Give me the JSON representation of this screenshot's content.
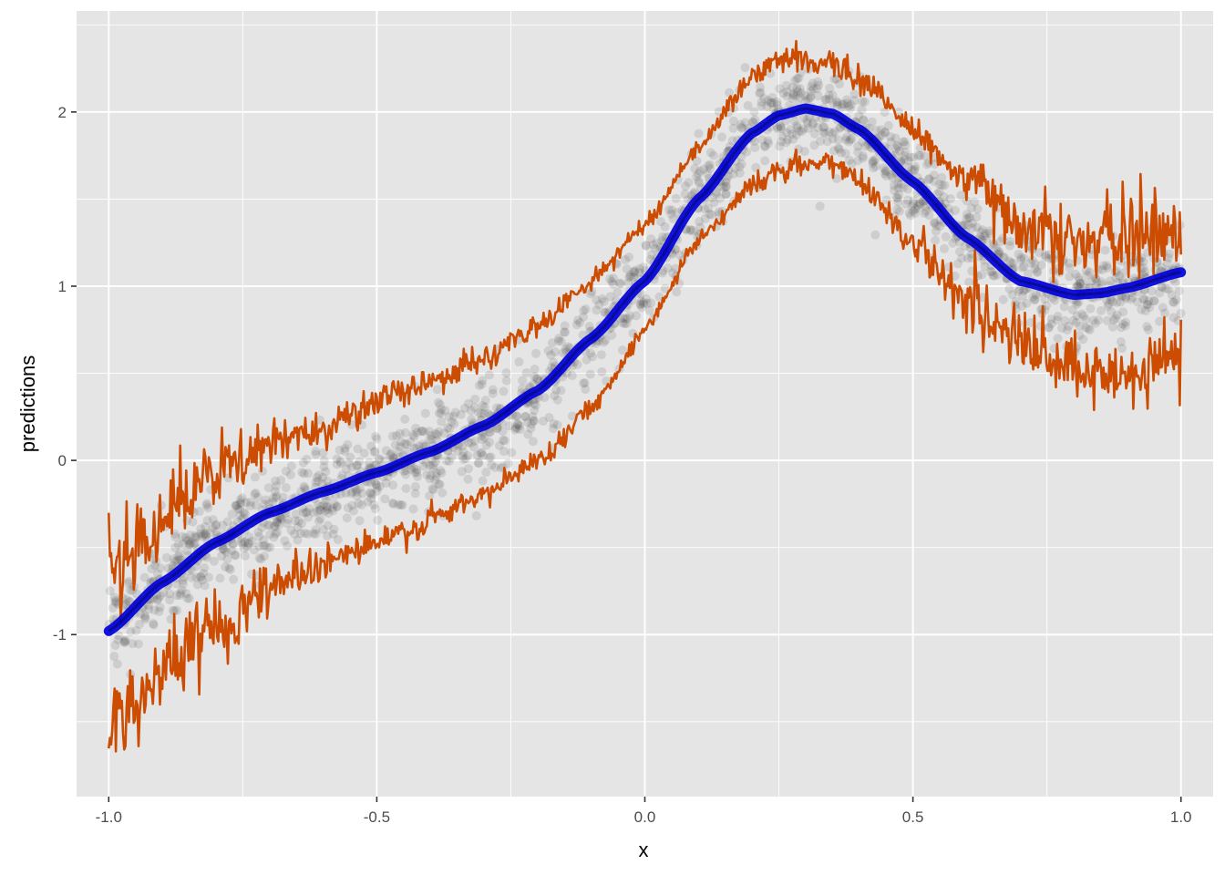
{
  "chart_data": {
    "type": "scatter",
    "title": "",
    "xlabel": "x",
    "ylabel": "predictions",
    "xlim": [
      -1.06,
      1.06
    ],
    "ylim": [
      -1.93,
      2.58
    ],
    "x_ticks": [
      -1.0,
      -0.5,
      0.0,
      0.5,
      1.0
    ],
    "x_tick_labels": [
      "-1.0",
      "-0.5",
      "0.0",
      "0.5",
      "1.0"
    ],
    "y_ticks": [
      -1,
      0,
      1,
      2
    ],
    "y_tick_labels": [
      "-1",
      "0",
      "1",
      "2"
    ],
    "grid": true,
    "legend": "none",
    "colors": {
      "panel_background": "#e5e5e5",
      "grid": "#ffffff",
      "points": "#333333",
      "mean_line": "#0000dd",
      "interval_lines": "#cc4c02"
    },
    "series": [
      {
        "role": "observed points",
        "style": "points",
        "n_points": 2000,
        "noise_sd": 0.13,
        "x": [
          -1.0,
          -0.9,
          -0.8,
          -0.7,
          -0.6,
          -0.5,
          -0.4,
          -0.3,
          -0.2,
          -0.1,
          0.0,
          0.1,
          0.2,
          0.25,
          0.3,
          0.35,
          0.4,
          0.5,
          0.6,
          0.7,
          0.8,
          0.85,
          0.9,
          1.0
        ],
        "y": [
          -0.98,
          -0.7,
          -0.47,
          -0.3,
          -0.18,
          -0.07,
          0.05,
          0.2,
          0.4,
          0.7,
          1.03,
          1.5,
          1.88,
          1.98,
          2.02,
          1.99,
          1.9,
          1.6,
          1.28,
          1.03,
          0.95,
          0.96,
          0.99,
          1.08
        ]
      },
      {
        "role": "fitted mean",
        "style": "thick-line",
        "x": [
          -1.0,
          -0.9,
          -0.8,
          -0.7,
          -0.6,
          -0.5,
          -0.4,
          -0.3,
          -0.2,
          -0.1,
          0.0,
          0.1,
          0.2,
          0.25,
          0.3,
          0.35,
          0.4,
          0.5,
          0.6,
          0.7,
          0.8,
          0.85,
          0.9,
          1.0
        ],
        "y": [
          -0.98,
          -0.7,
          -0.47,
          -0.3,
          -0.18,
          -0.07,
          0.05,
          0.2,
          0.4,
          0.7,
          1.03,
          1.5,
          1.88,
          1.98,
          2.02,
          1.99,
          1.9,
          1.6,
          1.28,
          1.03,
          0.95,
          0.96,
          0.99,
          1.08
        ]
      },
      {
        "role": "upper bound",
        "style": "noisy-line",
        "x": [
          -1.0,
          -0.9,
          -0.8,
          -0.7,
          -0.6,
          -0.5,
          -0.4,
          -0.3,
          -0.2,
          -0.1,
          0.0,
          0.1,
          0.2,
          0.25,
          0.3,
          0.35,
          0.4,
          0.5,
          0.6,
          0.7,
          0.8,
          0.85,
          0.9,
          1.0
        ],
        "y": [
          -0.6,
          -0.32,
          -0.08,
          0.08,
          0.2,
          0.33,
          0.46,
          0.58,
          0.77,
          1.03,
          1.35,
          1.8,
          2.2,
          2.3,
          2.3,
          2.28,
          2.2,
          1.9,
          1.6,
          1.38,
          1.25,
          1.25,
          1.28,
          1.35
        ]
      },
      {
        "role": "lower bound",
        "style": "noisy-line",
        "x": [
          -1.0,
          -0.9,
          -0.8,
          -0.7,
          -0.6,
          -0.5,
          -0.4,
          -0.3,
          -0.2,
          -0.1,
          0.0,
          0.1,
          0.2,
          0.25,
          0.3,
          0.35,
          0.4,
          0.5,
          0.6,
          0.7,
          0.8,
          0.85,
          0.9,
          1.0
        ],
        "y": [
          -1.55,
          -1.2,
          -0.95,
          -0.72,
          -0.58,
          -0.48,
          -0.35,
          -0.2,
          0.0,
          0.3,
          0.75,
          1.27,
          1.58,
          1.66,
          1.7,
          1.7,
          1.62,
          1.25,
          0.92,
          0.67,
          0.5,
          0.45,
          0.48,
          0.6
        ]
      }
    ]
  }
}
